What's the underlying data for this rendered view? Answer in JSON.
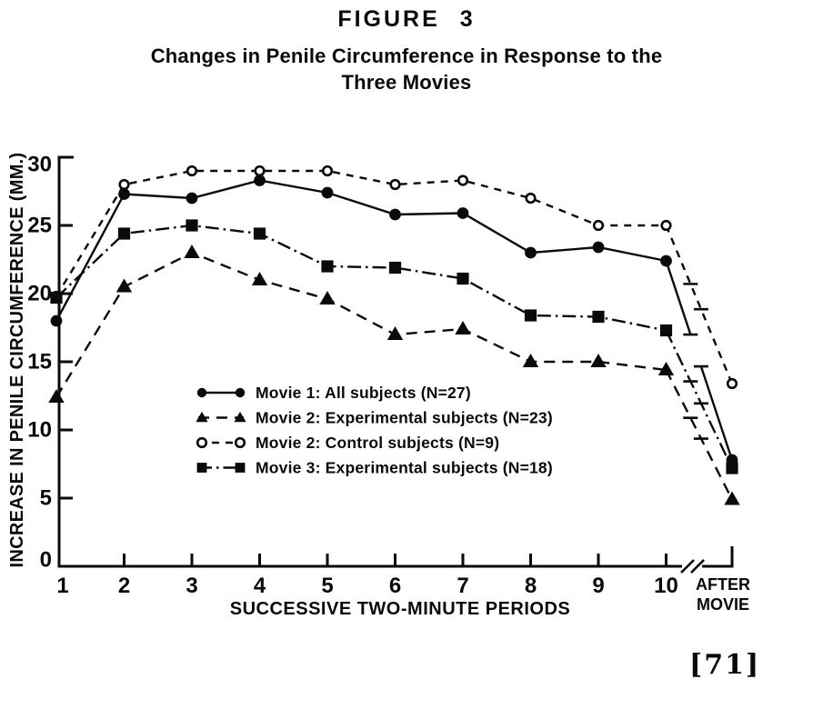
{
  "figure": {
    "page_number": "[71]"
  },
  "chart_data": {
    "type": "line",
    "title": "FIGURE 3",
    "subtitle": "Changes in Penile Circumference in Response to the Three Movies",
    "subtitle_lines": [
      "Changes in Penile Circumference in Response to the",
      "Three Movies"
    ],
    "xlabel": "SUCCESSIVE TWO-MINUTE PERIODS",
    "ylabel": "INCREASE IN PENILE CIRCUMFERENCE (MM.)",
    "x_tick_labels": [
      "1",
      "2",
      "3",
      "4",
      "5",
      "6",
      "7",
      "8",
      "9",
      "10"
    ],
    "after_label_lines": [
      "AFTER",
      "MOVIE"
    ],
    "y_ticks": [
      0,
      5,
      10,
      15,
      20,
      25,
      30
    ],
    "ylim": [
      0,
      30
    ],
    "grid": false,
    "x_axis_break_between": [
      "10",
      "AFTER MOVIE"
    ],
    "legend_position": "inside-lower-left",
    "ink_color": "#0a0a0a",
    "background_color": "#ffffff",
    "series": [
      {
        "name": "Movie 1: All subjects (N=27)",
        "marker": "filled-circle",
        "line": "solid",
        "values": [
          18,
          27.3,
          27,
          28.3,
          27.4,
          25.8,
          25.9,
          23,
          23.4,
          22.4
        ],
        "after_movie": 7.8
      },
      {
        "name": "Movie 2: Experimental subjects (N=23)",
        "marker": "filled-triangle",
        "line": "dashed",
        "values": [
          12.4,
          20.5,
          23,
          21,
          19.6,
          17,
          17.4,
          15,
          15,
          14.4
        ],
        "after_movie": 4.9
      },
      {
        "name": "Movie 2: Control subjects (N=9)",
        "marker": "open-circle",
        "line": "dashed",
        "values": [
          19.8,
          28,
          29,
          29,
          29,
          28,
          28.3,
          27,
          25,
          25
        ],
        "after_movie": 13.4
      },
      {
        "name": "Movie 3: Experimental subjects (N=18)",
        "marker": "filled-square",
        "line": "dash-dot",
        "values": [
          19.7,
          24.4,
          25,
          24.4,
          22,
          21.9,
          21.1,
          18.4,
          18.3,
          17.3
        ],
        "after_movie": 7.2
      }
    ]
  }
}
